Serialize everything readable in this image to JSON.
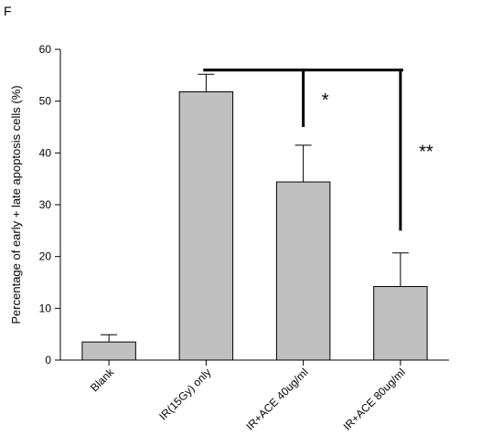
{
  "chart_data": {
    "type": "bar",
    "panel_label": "F",
    "title": "",
    "xlabel": "",
    "ylabel": "Percentage of early + late apoptosis cells (%)",
    "ylim": [
      0,
      60
    ],
    "yticks": [
      0,
      10,
      20,
      30,
      40,
      50,
      60
    ],
    "grid": false,
    "categories": [
      "Blank",
      "IR(15Gy) only",
      "IR+ACE 40ug/ml",
      "IR+ACE 80ug/ml"
    ],
    "values": [
      3.5,
      51.8,
      34.4,
      14.2
    ],
    "errors": [
      1.4,
      3.4,
      7.1,
      6.5
    ],
    "bar_color": "#c0c0c0",
    "significance": [
      {
        "from": "IR(15Gy) only",
        "to": "IR+ACE 40ug/ml",
        "bracket_y": 56,
        "drop_to": 45,
        "label": "*"
      },
      {
        "from": "IR(15Gy) only",
        "to": "IR+ACE 80ug/ml",
        "bracket_y": 56,
        "drop_to": 25,
        "label": "**"
      }
    ]
  }
}
